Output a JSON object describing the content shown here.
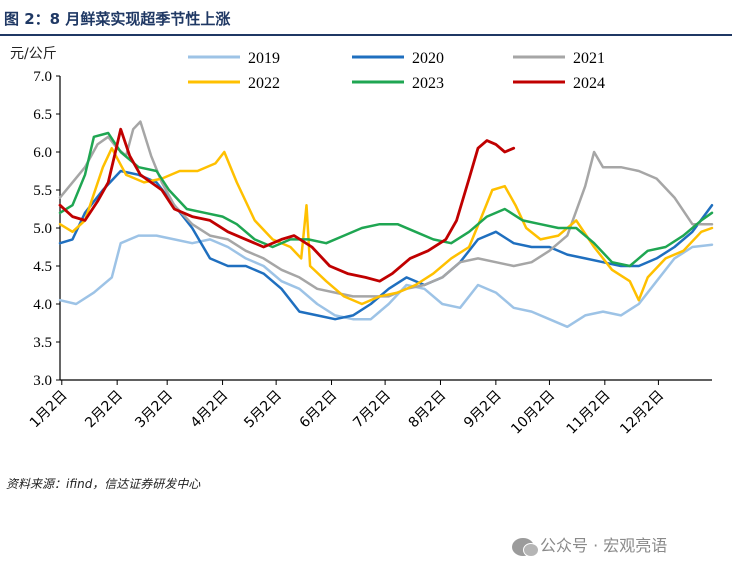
{
  "header": {
    "title": "图 2：8 月鲜菜实现超季节性上涨"
  },
  "unit": "元/公斤",
  "source": "资料来源：ifind，信达证券研发中心",
  "watermark": {
    "icon": "wechat-icon",
    "text": "公众号 · 宏观亮语"
  },
  "chart_data": {
    "type": "line",
    "title": "图 2：8 月鲜菜实现超季节性上涨",
    "ylabel": "元/公斤",
    "xlabel": "",
    "ylim": [
      3.0,
      7.0
    ],
    "xlim": [
      1,
      366
    ],
    "yticks": [
      "3.0",
      "3.5",
      "4.0",
      "4.5",
      "5.0",
      "5.5",
      "6.0",
      "6.5",
      "7.0"
    ],
    "xticks": [
      {
        "label": "1月2日",
        "day": 2
      },
      {
        "label": "2月2日",
        "day": 33
      },
      {
        "label": "3月2日",
        "day": 61
      },
      {
        "label": "4月2日",
        "day": 92
      },
      {
        "label": "5月2日",
        "day": 122
      },
      {
        "label": "6月2日",
        "day": 153
      },
      {
        "label": "7月2日",
        "day": 183
      },
      {
        "label": "8月2日",
        "day": 214
      },
      {
        "label": "9月2日",
        "day": 245
      },
      {
        "label": "10月2日",
        "day": 275
      },
      {
        "label": "11月2日",
        "day": 306
      },
      {
        "label": "12月2日",
        "day": 336
      }
    ],
    "legend": "top",
    "series": [
      {
        "name": "2019",
        "color": "#9dc3e6",
        "width": 2.5,
        "points": [
          [
            1,
            4.05
          ],
          [
            10,
            4.0
          ],
          [
            20,
            4.15
          ],
          [
            30,
            4.35
          ],
          [
            35,
            4.8
          ],
          [
            45,
            4.9
          ],
          [
            55,
            4.9
          ],
          [
            65,
            4.85
          ],
          [
            75,
            4.8
          ],
          [
            85,
            4.85
          ],
          [
            95,
            4.75
          ],
          [
            105,
            4.6
          ],
          [
            115,
            4.5
          ],
          [
            125,
            4.3
          ],
          [
            135,
            4.2
          ],
          [
            145,
            4.0
          ],
          [
            155,
            3.85
          ],
          [
            165,
            3.8
          ],
          [
            175,
            3.8
          ],
          [
            185,
            4.0
          ],
          [
            195,
            4.25
          ],
          [
            205,
            4.2
          ],
          [
            215,
            4.0
          ],
          [
            225,
            3.95
          ],
          [
            235,
            4.25
          ],
          [
            245,
            4.15
          ],
          [
            255,
            3.95
          ],
          [
            265,
            3.9
          ],
          [
            275,
            3.8
          ],
          [
            285,
            3.7
          ],
          [
            295,
            3.85
          ],
          [
            305,
            3.9
          ],
          [
            315,
            3.85
          ],
          [
            325,
            4.0
          ],
          [
            335,
            4.3
          ],
          [
            345,
            4.6
          ],
          [
            355,
            4.75
          ],
          [
            366,
            4.78
          ]
        ]
      },
      {
        "name": "2020",
        "color": "#1f6fbf",
        "width": 2.5,
        "points": [
          [
            1,
            4.8
          ],
          [
            8,
            4.85
          ],
          [
            15,
            5.2
          ],
          [
            25,
            5.5
          ],
          [
            35,
            5.75
          ],
          [
            45,
            5.7
          ],
          [
            55,
            5.6
          ],
          [
            65,
            5.3
          ],
          [
            75,
            5.0
          ],
          [
            85,
            4.6
          ],
          [
            95,
            4.5
          ],
          [
            105,
            4.5
          ],
          [
            115,
            4.4
          ],
          [
            125,
            4.2
          ],
          [
            135,
            3.9
          ],
          [
            145,
            3.85
          ],
          [
            155,
            3.8
          ],
          [
            165,
            3.85
          ],
          [
            175,
            4.0
          ],
          [
            185,
            4.2
          ],
          [
            195,
            4.35
          ],
          [
            205,
            4.25
          ],
          [
            215,
            4.35
          ],
          [
            225,
            4.55
          ],
          [
            235,
            4.85
          ],
          [
            245,
            4.95
          ],
          [
            255,
            4.8
          ],
          [
            265,
            4.75
          ],
          [
            275,
            4.75
          ],
          [
            285,
            4.65
          ],
          [
            295,
            4.6
          ],
          [
            305,
            4.55
          ],
          [
            315,
            4.5
          ],
          [
            325,
            4.5
          ],
          [
            335,
            4.6
          ],
          [
            345,
            4.75
          ],
          [
            355,
            4.95
          ],
          [
            366,
            5.3
          ]
        ]
      },
      {
        "name": "2021",
        "color": "#a6a6a6",
        "width": 2.5,
        "points": [
          [
            1,
            5.4
          ],
          [
            8,
            5.6
          ],
          [
            15,
            5.8
          ],
          [
            22,
            6.1
          ],
          [
            28,
            6.2
          ],
          [
            33,
            6.05
          ],
          [
            38,
            5.95
          ],
          [
            42,
            6.3
          ],
          [
            46,
            6.4
          ],
          [
            52,
            5.95
          ],
          [
            58,
            5.6
          ],
          [
            65,
            5.3
          ],
          [
            75,
            5.05
          ],
          [
            85,
            4.9
          ],
          [
            95,
            4.85
          ],
          [
            105,
            4.7
          ],
          [
            115,
            4.6
          ],
          [
            125,
            4.45
          ],
          [
            135,
            4.35
          ],
          [
            145,
            4.2
          ],
          [
            155,
            4.15
          ],
          [
            165,
            4.1
          ],
          [
            175,
            4.1
          ],
          [
            185,
            4.1
          ],
          [
            195,
            4.2
          ],
          [
            205,
            4.25
          ],
          [
            215,
            4.35
          ],
          [
            225,
            4.55
          ],
          [
            235,
            4.6
          ],
          [
            245,
            4.55
          ],
          [
            255,
            4.5
          ],
          [
            265,
            4.55
          ],
          [
            275,
            4.7
          ],
          [
            285,
            4.9
          ],
          [
            295,
            5.55
          ],
          [
            300,
            6.0
          ],
          [
            305,
            5.8
          ],
          [
            315,
            5.8
          ],
          [
            325,
            5.75
          ],
          [
            335,
            5.65
          ],
          [
            345,
            5.4
          ],
          [
            355,
            5.05
          ],
          [
            366,
            5.05
          ]
        ]
      },
      {
        "name": "2022",
        "color": "#ffc000",
        "width": 2.5,
        "points": [
          [
            1,
            5.05
          ],
          [
            8,
            4.95
          ],
          [
            15,
            5.1
          ],
          [
            25,
            5.8
          ],
          [
            30,
            6.05
          ],
          [
            38,
            5.7
          ],
          [
            48,
            5.6
          ],
          [
            58,
            5.65
          ],
          [
            68,
            5.75
          ],
          [
            78,
            5.75
          ],
          [
            88,
            5.85
          ],
          [
            93,
            6.0
          ],
          [
            100,
            5.6
          ],
          [
            110,
            5.1
          ],
          [
            120,
            4.85
          ],
          [
            130,
            4.75
          ],
          [
            136,
            4.6
          ],
          [
            139,
            5.3
          ],
          [
            141,
            4.5
          ],
          [
            150,
            4.3
          ],
          [
            160,
            4.1
          ],
          [
            170,
            4.0
          ],
          [
            180,
            4.1
          ],
          [
            190,
            4.15
          ],
          [
            200,
            4.25
          ],
          [
            210,
            4.4
          ],
          [
            220,
            4.6
          ],
          [
            230,
            4.75
          ],
          [
            237,
            5.15
          ],
          [
            243,
            5.5
          ],
          [
            250,
            5.55
          ],
          [
            256,
            5.3
          ],
          [
            262,
            5.0
          ],
          [
            270,
            4.85
          ],
          [
            280,
            4.9
          ],
          [
            290,
            5.1
          ],
          [
            300,
            4.75
          ],
          [
            310,
            4.45
          ],
          [
            320,
            4.3
          ],
          [
            325,
            4.05
          ],
          [
            330,
            4.35
          ],
          [
            340,
            4.6
          ],
          [
            350,
            4.7
          ],
          [
            360,
            4.95
          ],
          [
            366,
            5.0
          ]
        ]
      },
      {
        "name": "2023",
        "color": "#1fa652",
        "width": 2.5,
        "points": [
          [
            1,
            5.2
          ],
          [
            8,
            5.3
          ],
          [
            15,
            5.7
          ],
          [
            20,
            6.2
          ],
          [
            28,
            6.25
          ],
          [
            35,
            6.0
          ],
          [
            45,
            5.8
          ],
          [
            55,
            5.75
          ],
          [
            62,
            5.5
          ],
          [
            72,
            5.25
          ],
          [
            82,
            5.2
          ],
          [
            92,
            5.15
          ],
          [
            100,
            5.05
          ],
          [
            110,
            4.85
          ],
          [
            120,
            4.75
          ],
          [
            130,
            4.85
          ],
          [
            140,
            4.85
          ],
          [
            150,
            4.8
          ],
          [
            160,
            4.9
          ],
          [
            170,
            5.0
          ],
          [
            180,
            5.05
          ],
          [
            190,
            5.05
          ],
          [
            200,
            4.95
          ],
          [
            210,
            4.85
          ],
          [
            220,
            4.8
          ],
          [
            230,
            4.95
          ],
          [
            240,
            5.15
          ],
          [
            250,
            5.25
          ],
          [
            260,
            5.1
          ],
          [
            270,
            5.05
          ],
          [
            280,
            5.0
          ],
          [
            290,
            5.0
          ],
          [
            300,
            4.8
          ],
          [
            310,
            4.55
          ],
          [
            320,
            4.5
          ],
          [
            330,
            4.7
          ],
          [
            340,
            4.75
          ],
          [
            350,
            4.9
          ],
          [
            360,
            5.1
          ],
          [
            366,
            5.2
          ]
        ]
      },
      {
        "name": "2024",
        "color": "#c00000",
        "width": 2.8,
        "points": [
          [
            1,
            5.3
          ],
          [
            8,
            5.15
          ],
          [
            15,
            5.1
          ],
          [
            22,
            5.35
          ],
          [
            28,
            5.6
          ],
          [
            32,
            6.0
          ],
          [
            35,
            6.3
          ],
          [
            40,
            5.95
          ],
          [
            46,
            5.7
          ],
          [
            52,
            5.6
          ],
          [
            58,
            5.5
          ],
          [
            65,
            5.25
          ],
          [
            75,
            5.15
          ],
          [
            85,
            5.1
          ],
          [
            95,
            4.95
          ],
          [
            105,
            4.85
          ],
          [
            115,
            4.75
          ],
          [
            125,
            4.85
          ],
          [
            132,
            4.9
          ],
          [
            142,
            4.75
          ],
          [
            152,
            4.5
          ],
          [
            162,
            4.4
          ],
          [
            172,
            4.35
          ],
          [
            180,
            4.3
          ],
          [
            187,
            4.4
          ],
          [
            197,
            4.6
          ],
          [
            207,
            4.7
          ],
          [
            217,
            4.85
          ],
          [
            223,
            5.1
          ],
          [
            230,
            5.65
          ],
          [
            235,
            6.05
          ],
          [
            240,
            6.15
          ],
          [
            245,
            6.1
          ],
          [
            250,
            6.0
          ],
          [
            255,
            6.05
          ]
        ]
      }
    ]
  }
}
